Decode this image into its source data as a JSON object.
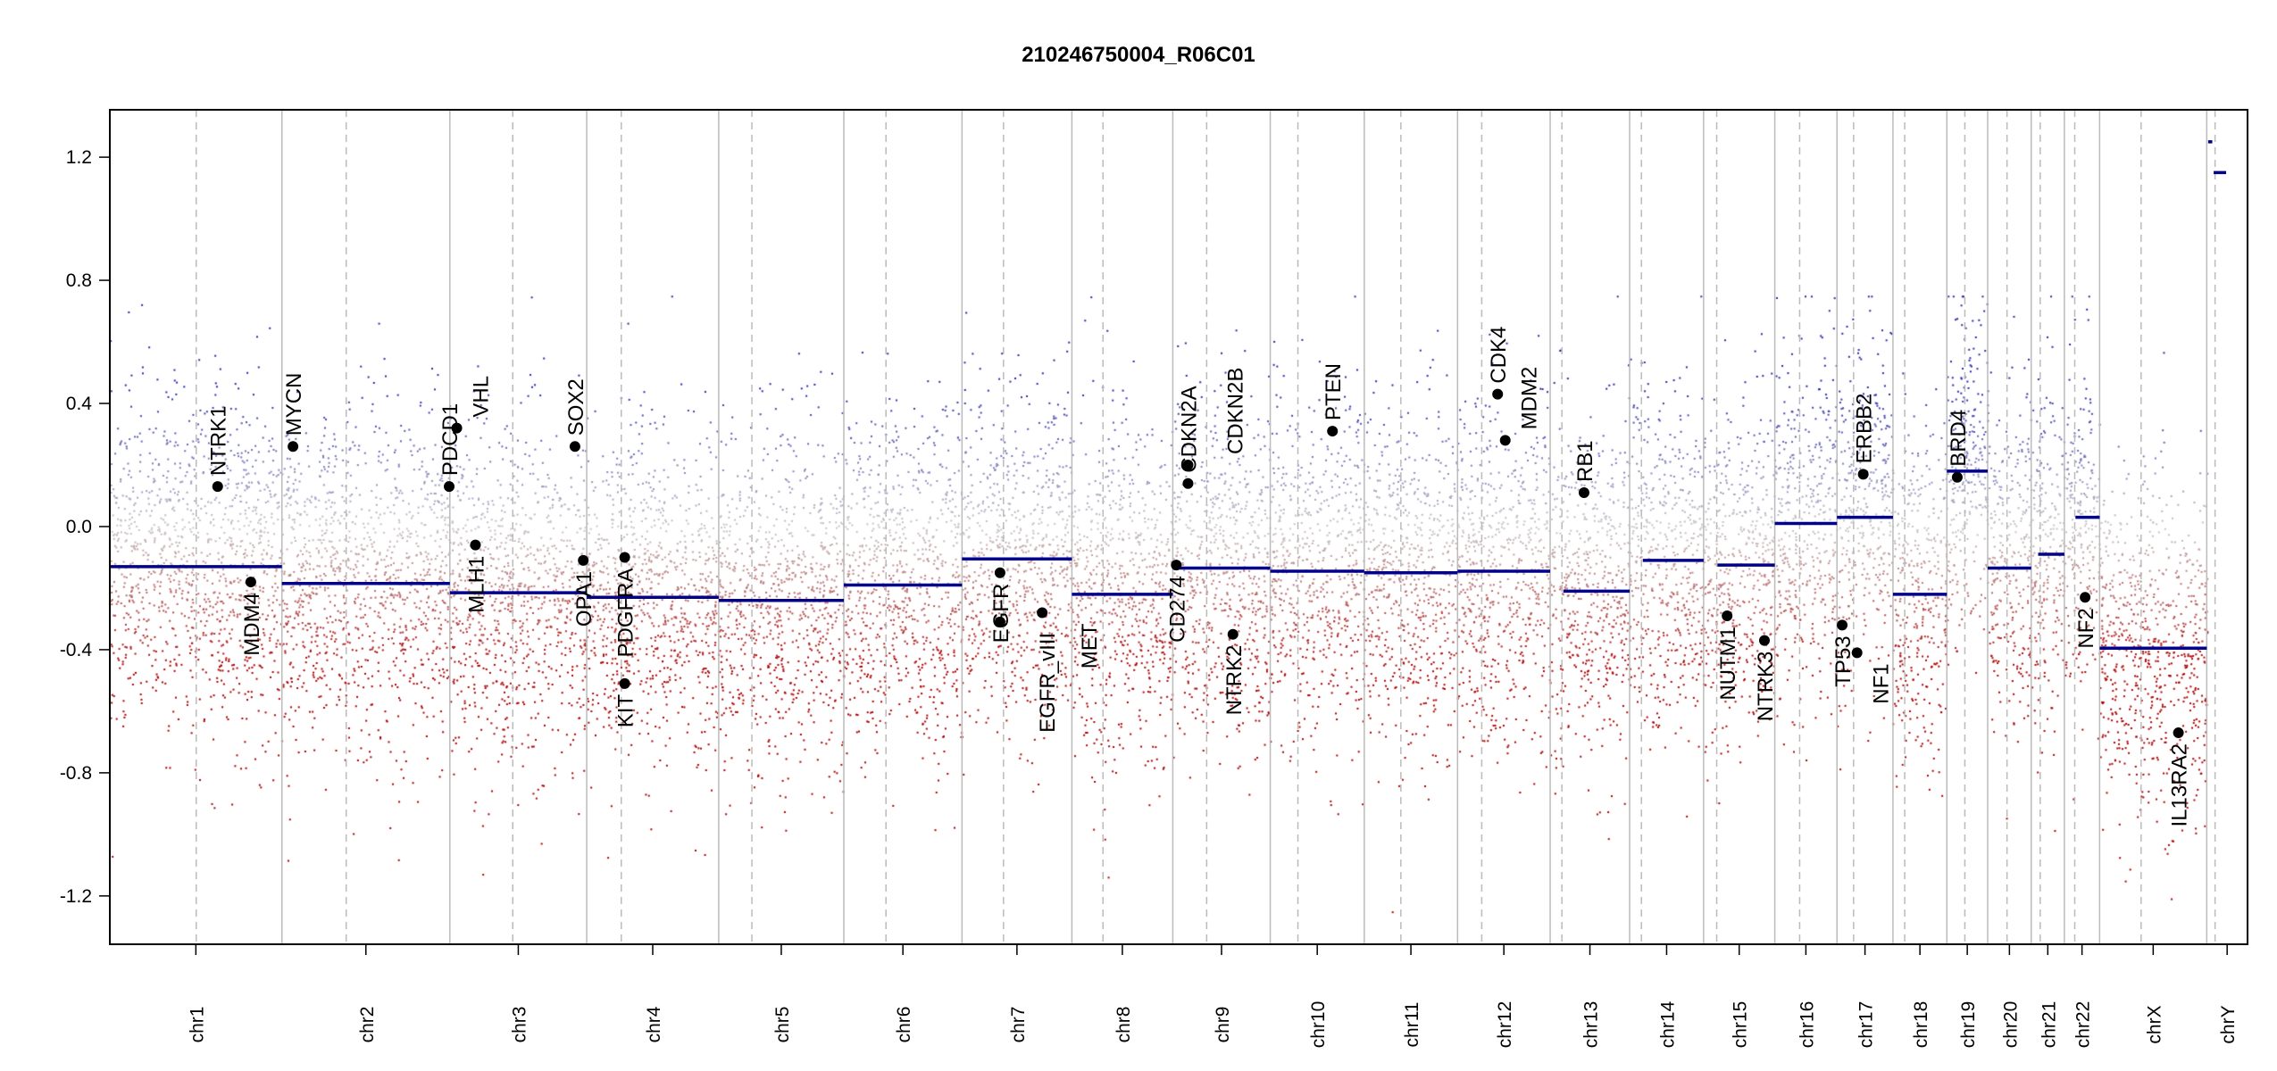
{
  "chart_data": {
    "type": "scatter",
    "title": "210246750004_R06C01",
    "xlabel": "",
    "ylabel": "",
    "ylim": [
      -1.357,
      1.354
    ],
    "yticks": [
      -1.2,
      -0.8,
      -0.4,
      0.0,
      0.4,
      0.8,
      1.2
    ],
    "ytick_labels": [
      "-1.2",
      "-0.8",
      "-0.4",
      "0.0",
      "0.4",
      "0.8",
      "1.2"
    ],
    "grid": false,
    "chromosomes": [
      {
        "name": "chr1",
        "length": 249,
        "centromere": 125,
        "segments": [
          [
            0,
            249,
            -0.13
          ]
        ]
      },
      {
        "name": "chr2",
        "length": 243,
        "centromere": 93,
        "segments": [
          [
            0,
            243,
            -0.185
          ]
        ]
      },
      {
        "name": "chr3",
        "length": 198,
        "centromere": 91,
        "segments": [
          [
            0,
            198,
            -0.215
          ]
        ]
      },
      {
        "name": "chr4",
        "length": 191,
        "centromere": 50,
        "segments": [
          [
            0,
            191,
            -0.23
          ]
        ]
      },
      {
        "name": "chr5",
        "length": 181,
        "centromere": 48,
        "segments": [
          [
            0,
            181,
            -0.24
          ]
        ]
      },
      {
        "name": "chr6",
        "length": 171,
        "centromere": 61,
        "segments": [
          [
            0,
            171,
            -0.19
          ]
        ]
      },
      {
        "name": "chr7",
        "length": 159,
        "centromere": 60,
        "segments": [
          [
            0,
            159,
            -0.105
          ]
        ]
      },
      {
        "name": "chr8",
        "length": 146,
        "centromere": 45,
        "segments": [
          [
            0,
            146,
            -0.22
          ]
        ]
      },
      {
        "name": "chr9",
        "length": 141,
        "centromere": 49,
        "segments": [
          [
            0,
            141,
            -0.135
          ]
        ]
      },
      {
        "name": "chr10",
        "length": 136,
        "centromere": 40,
        "segments": [
          [
            0,
            136,
            -0.145
          ]
        ]
      },
      {
        "name": "chr11",
        "length": 135,
        "centromere": 53,
        "segments": [
          [
            0,
            135,
            -0.15
          ]
        ]
      },
      {
        "name": "chr12",
        "length": 134,
        "centromere": 35,
        "segments": [
          [
            0,
            134,
            -0.145
          ]
        ]
      },
      {
        "name": "chr13",
        "length": 115,
        "centromere": 17,
        "segments": [
          [
            19,
            115,
            -0.21
          ]
        ]
      },
      {
        "name": "chr14",
        "length": 107,
        "centromere": 17,
        "segments": [
          [
            19,
            107,
            -0.11
          ]
        ]
      },
      {
        "name": "chr15",
        "length": 103,
        "centromere": 19,
        "segments": [
          [
            20,
            103,
            -0.125
          ]
        ]
      },
      {
        "name": "chr16",
        "length": 90,
        "centromere": 36,
        "segments": [
          [
            0,
            90,
            0.01
          ]
        ]
      },
      {
        "name": "chr17",
        "length": 81,
        "centromere": 24,
        "segments": [
          [
            0,
            81,
            0.03
          ]
        ]
      },
      {
        "name": "chr18",
        "length": 78,
        "centromere": 17,
        "segments": [
          [
            0,
            78,
            -0.22
          ]
        ]
      },
      {
        "name": "chr19",
        "length": 59,
        "centromere": 26,
        "segments": [
          [
            0,
            59,
            0.18
          ]
        ]
      },
      {
        "name": "chr20",
        "length": 63,
        "centromere": 28,
        "segments": [
          [
            0,
            63,
            -0.135
          ]
        ]
      },
      {
        "name": "chr21",
        "length": 48,
        "centromere": 13,
        "segments": [
          [
            10,
            48,
            -0.09
          ]
        ]
      },
      {
        "name": "chr22",
        "length": 51,
        "centromere": 15,
        "segments": [
          [
            16,
            51,
            0.03
          ]
        ]
      },
      {
        "name": "chrX",
        "length": 155,
        "centromere": 60,
        "segments": [
          [
            0,
            155,
            -0.395
          ]
        ]
      },
      {
        "name": "chrY",
        "length": 59,
        "centromere": 12,
        "segments": [
          [
            2,
            8,
            1.25
          ],
          [
            10,
            28,
            1.15
          ]
        ]
      }
    ],
    "genes": [
      {
        "name": "NTRK1",
        "chr": "chr1",
        "pos": 156,
        "value": 0.13,
        "side": "above"
      },
      {
        "name": "MDM4",
        "chr": "chr1",
        "pos": 204,
        "value": -0.18,
        "side": "below"
      },
      {
        "name": "MYCN",
        "chr": "chr2",
        "pos": 16,
        "value": 0.26,
        "side": "above"
      },
      {
        "name": "PDCD1",
        "chr": "chr2",
        "pos": 242,
        "value": 0.13,
        "side": "above"
      },
      {
        "name": "VHL",
        "chr": "chr3",
        "pos": 10,
        "value": 0.32,
        "side": "above"
      },
      {
        "name": "MLH1",
        "chr": "chr3",
        "pos": 37,
        "value": -0.06,
        "side": "below"
      },
      {
        "name": "SOX2",
        "chr": "chr3",
        "pos": 181,
        "value": 0.26,
        "side": "above"
      },
      {
        "name": "OPA1",
        "chr": "chr3",
        "pos": 193,
        "value": -0.11,
        "side": "below"
      },
      {
        "name": "PDGFRA",
        "chr": "chr4",
        "pos": 55,
        "value": -0.1,
        "side": "below"
      },
      {
        "name": "KIT",
        "chr": "chr4",
        "pos": 55,
        "value": -0.51,
        "side": "below"
      },
      {
        "name": "EGFR",
        "chr": "chr7",
        "pos": 55,
        "value": -0.15,
        "side": "below"
      },
      {
        "name": "EGFR_vIII",
        "chr": "chr7",
        "pos": 55,
        "value": -0.31,
        "side": "below"
      },
      {
        "name": "MET",
        "chr": "chr7",
        "pos": 116,
        "value": -0.28,
        "side": "below"
      },
      {
        "name": "CD274",
        "chr": "chr9",
        "pos": 5,
        "value": -0.125,
        "side": "below"
      },
      {
        "name": "CDKN2A",
        "chr": "chr9",
        "pos": 22,
        "value": 0.14,
        "side": "above"
      },
      {
        "name": "CDKN2B",
        "chr": "chr9",
        "pos": 22,
        "value": 0.2,
        "side": "above"
      },
      {
        "name": "NTRK2",
        "chr": "chr9",
        "pos": 87,
        "value": -0.35,
        "side": "below"
      },
      {
        "name": "PTEN",
        "chr": "chr10",
        "pos": 90,
        "value": 0.31,
        "side": "above"
      },
      {
        "name": "CDK4",
        "chr": "chr12",
        "pos": 58,
        "value": 0.43,
        "side": "above"
      },
      {
        "name": "MDM2",
        "chr": "chr12",
        "pos": 69,
        "value": 0.28,
        "side": "above"
      },
      {
        "name": "RB1",
        "chr": "chr13",
        "pos": 49,
        "value": 0.11,
        "side": "above"
      },
      {
        "name": "NUTM1",
        "chr": "chr15",
        "pos": 34,
        "value": -0.29,
        "side": "below"
      },
      {
        "name": "NTRK3",
        "chr": "chr15",
        "pos": 88,
        "value": -0.37,
        "side": "below"
      },
      {
        "name": "TP53",
        "chr": "chr17",
        "pos": 7.5,
        "value": -0.32,
        "side": "below"
      },
      {
        "name": "NF1",
        "chr": "chr17",
        "pos": 29,
        "value": -0.41,
        "side": "below"
      },
      {
        "name": "ERBB2",
        "chr": "chr17",
        "pos": 38,
        "value": 0.17,
        "side": "above"
      },
      {
        "name": "BRD4",
        "chr": "chr19",
        "pos": 15,
        "value": 0.16,
        "side": "above"
      },
      {
        "name": "NF2",
        "chr": "chr22",
        "pos": 30,
        "value": -0.23,
        "side": "below"
      },
      {
        "name": "IL13RA2",
        "chr": "chrX",
        "pos": 114,
        "value": -0.67,
        "side": "below"
      }
    ],
    "colors": {
      "gain": "#3333aa",
      "neutral": "#c8c8c8",
      "loss": "#aa0000",
      "segment": "#00008b",
      "chrom_border": "#bbbbbb",
      "centromere": "#bbbbbb"
    }
  }
}
